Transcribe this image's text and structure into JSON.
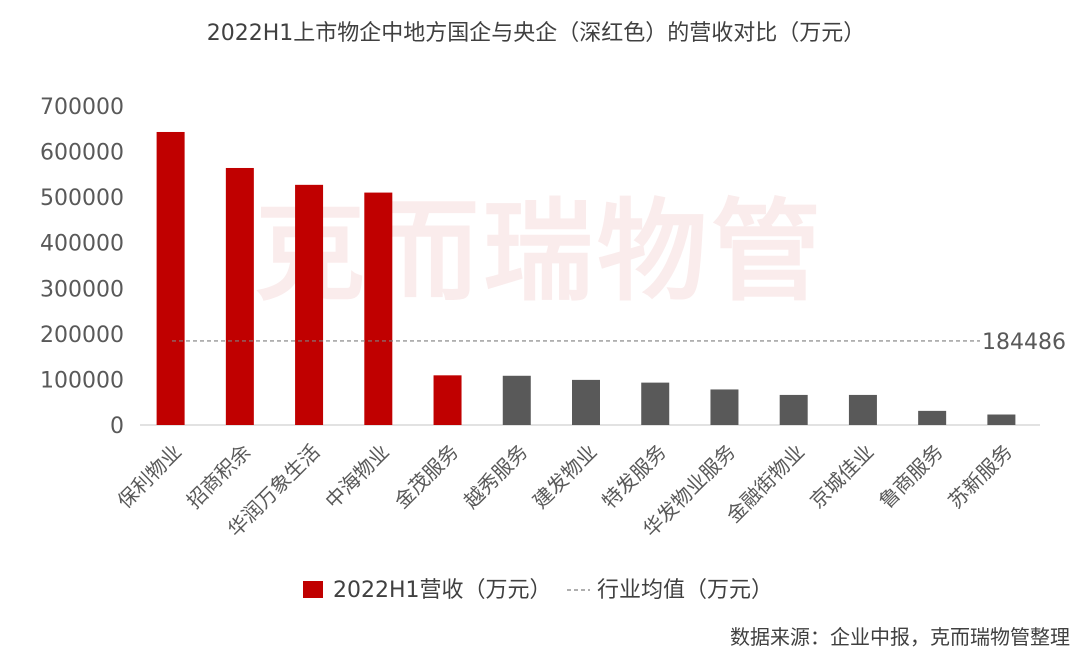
{
  "chart_data": {
    "type": "bar",
    "title": "2022H1上市物企中地方国企与央企（深红色）的营收对比（万元）",
    "categories": [
      "保利物业",
      "招商积余",
      "华润万象生活",
      "中海物业",
      "金茂服务",
      "越秀服务",
      "建发物业",
      "特发服务",
      "华发物业服务",
      "金融街物业",
      "京城佳业",
      "鲁商服务",
      "苏新服务"
    ],
    "values": [
      643000,
      564000,
      527000,
      510000,
      109000,
      108000,
      99000,
      93000,
      78000,
      66000,
      66000,
      31000,
      23000
    ],
    "series": [
      {
        "name": "2022H1营收（万元）",
        "values": [
          643000,
          564000,
          527000,
          510000,
          109000,
          108000,
          99000,
          93000,
          78000,
          66000,
          66000,
          31000,
          23000
        ]
      }
    ],
    "central_soe_flags": [
      true,
      true,
      true,
      true,
      true,
      false,
      false,
      false,
      false,
      false,
      false,
      false,
      false
    ],
    "average": {
      "name": "行业均值（万元）",
      "value": 184486,
      "label": "184486"
    },
    "ylim": [
      0,
      700000
    ],
    "yticks": [
      "0",
      "100000",
      "200000",
      "300000",
      "400000",
      "500000",
      "600000",
      "700000"
    ],
    "xlabel": "",
    "ylabel": "",
    "grid": false,
    "legend_position": "bottom"
  },
  "colors": {
    "central": "#c00000",
    "local": "#595959",
    "avg_line": "#7f7f7f"
  },
  "watermark": "克而瑞物管",
  "source": "数据来源：企业中报，克而瑞物管整理"
}
